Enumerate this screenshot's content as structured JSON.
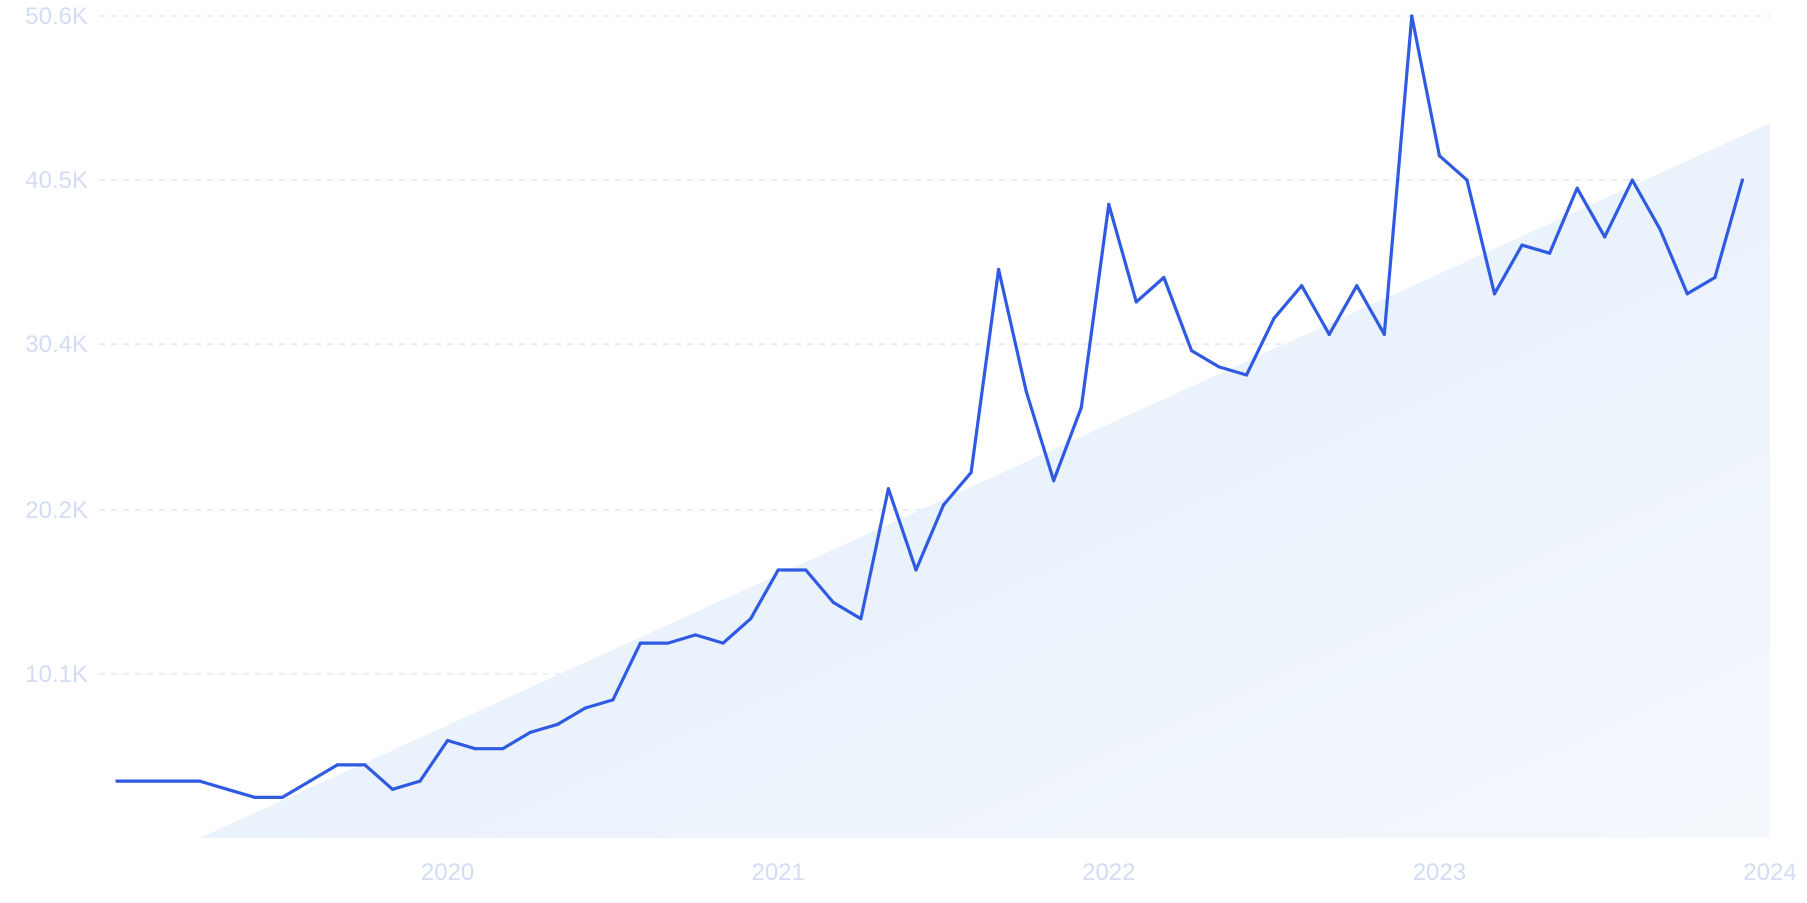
{
  "chart_data": {
    "type": "line",
    "title": "",
    "xlabel": "",
    "ylabel": "",
    "ylim": [
      0,
      50600
    ],
    "xlim": [
      "2019-01",
      "2024-01"
    ],
    "grid": true,
    "yticks": [
      {
        "value": 10100,
        "label": "10.1K"
      },
      {
        "value": 20200,
        "label": "20.2K"
      },
      {
        "value": 30400,
        "label": "30.4K"
      },
      {
        "value": 40500,
        "label": "40.5K"
      },
      {
        "value": 50600,
        "label": "50.6K"
      }
    ],
    "xticks": [
      {
        "value": "2020-01",
        "label": "2020"
      },
      {
        "value": "2021-01",
        "label": "2021"
      },
      {
        "value": "2022-01",
        "label": "2022"
      },
      {
        "value": "2023-01",
        "label": "2023"
      },
      {
        "value": "2024-01",
        "label": "2024"
      }
    ],
    "trend": {
      "start": [
        "2019-04",
        0
      ],
      "end": [
        "2024-01",
        44000
      ]
    },
    "colors": {
      "line": "#2f5be3",
      "trend_fill": "#e3eefb",
      "tick_label": "#d3dcf2",
      "grid": "#dde3ef"
    },
    "series": [
      {
        "x": [
          "2019-01",
          "2019-02",
          "2019-03",
          "2019-04",
          "2019-05",
          "2019-06",
          "2019-07",
          "2019-08",
          "2019-09",
          "2019-10",
          "2019-11",
          "2019-12",
          "2020-01",
          "2020-02",
          "2020-03",
          "2020-04",
          "2020-05",
          "2020-06",
          "2020-07",
          "2020-08",
          "2020-09",
          "2020-10",
          "2020-11",
          "2020-12",
          "2021-01",
          "2021-02",
          "2021-03",
          "2021-04",
          "2021-05",
          "2021-06",
          "2021-07",
          "2021-08",
          "2021-09",
          "2021-10",
          "2021-11",
          "2021-12",
          "2022-01",
          "2022-02",
          "2022-03",
          "2022-04",
          "2022-05",
          "2022-06",
          "2022-07",
          "2022-08",
          "2022-09",
          "2022-10",
          "2022-11",
          "2022-12",
          "2023-01",
          "2023-02",
          "2023-03",
          "2023-04",
          "2023-05",
          "2023-06",
          "2023-07",
          "2023-08",
          "2023-09",
          "2023-10",
          "2023-11",
          "2023-12",
          "2024-01"
        ],
        "values": [
          3500,
          3500,
          3500,
          3500,
          3000,
          2500,
          2500,
          3500,
          4500,
          4500,
          3000,
          3500,
          6000,
          5500,
          5500,
          6500,
          7000,
          8000,
          8500,
          12000,
          12000,
          12500,
          12000,
          13500,
          16500,
          16500,
          14500,
          13500,
          21500,
          16500,
          20500,
          22500,
          35000,
          27500,
          22000,
          26500,
          39000,
          33000,
          34500,
          30000,
          29000,
          28500,
          32000,
          34000,
          31000,
          34000,
          31000,
          50600,
          42000,
          40500,
          33500,
          36500,
          36000,
          40000,
          37000,
          40500,
          37500,
          33500,
          34500,
          40500,
          null
        ]
      }
    ]
  }
}
